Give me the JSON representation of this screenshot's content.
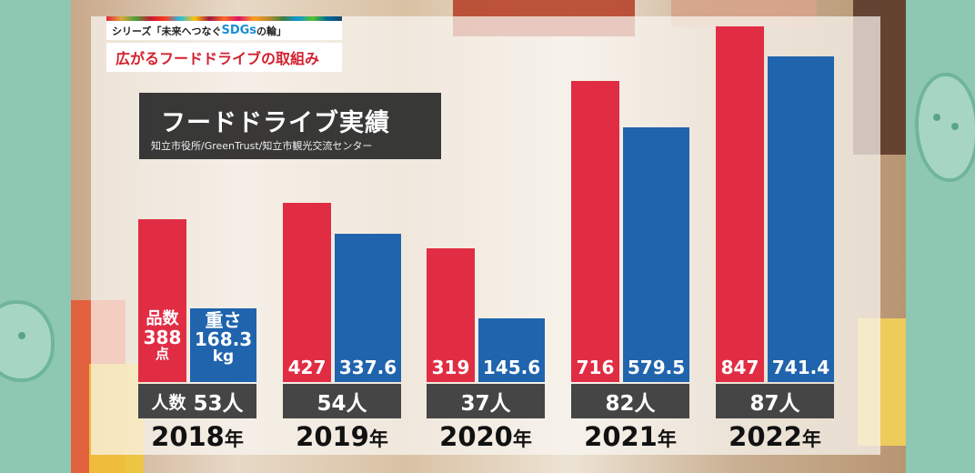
{
  "series_banner": {
    "prefix": "シリーズ「未来へつなぐ",
    "highlight": "SDGs",
    "suffix": "の輪」"
  },
  "topic": "広がるフードドライブの取組み",
  "chart_data": {
    "type": "bar",
    "title": "フードドライブ実績",
    "subtitle": "知立市役所/GreenTrust/知立市観光交流センター",
    "categories": [
      "2018年",
      "2019年",
      "2020年",
      "2021年",
      "2022年"
    ],
    "series": [
      {
        "name": "品数",
        "unit": "点",
        "color": "#e12d44",
        "values": [
          388,
          427,
          319,
          716,
          847
        ]
      },
      {
        "name": "重さ",
        "unit": "kg",
        "color": "#1f64ad",
        "values": [
          168.3,
          337.6,
          145.6,
          579.5,
          741.4
        ]
      }
    ],
    "people": {
      "name": "人数",
      "unit": "人",
      "values": [
        53,
        54,
        37,
        82,
        87
      ],
      "labels": [
        "53人",
        "54人",
        "37人",
        "82人",
        "87人"
      ]
    },
    "value_labels_red": [
      "388",
      "427",
      "319",
      "716",
      "847"
    ],
    "value_labels_blue": [
      "168.3",
      "337.6",
      "145.6",
      "579.5",
      "741.4"
    ],
    "years": [
      "2018",
      "2019",
      "2020",
      "2021",
      "2022"
    ],
    "year_suffix": "年",
    "ylim": [
      0,
      900
    ],
    "grid": false
  }
}
